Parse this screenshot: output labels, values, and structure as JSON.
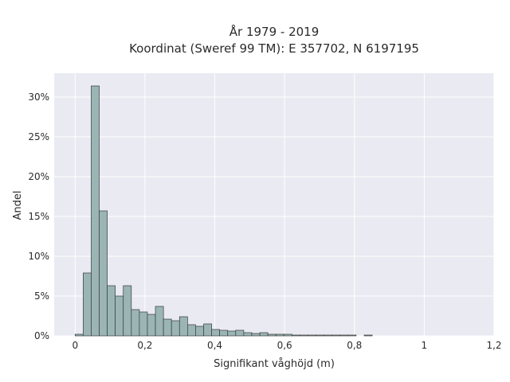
{
  "chart_data": {
    "type": "bar",
    "title_lines": [
      "År 1979 - 2019",
      "Koordinat (Sweref 99 TM): E 357702, N 6197195"
    ],
    "xlabel": "Signifikant våghöjd (m)",
    "ylabel": "Andel",
    "xlim": [
      -0.06,
      1.2
    ],
    "ylim": [
      0,
      0.33
    ],
    "x_ticks": [
      {
        "value": 0,
        "label": "0"
      },
      {
        "value": 0.2,
        "label": "0,2"
      },
      {
        "value": 0.4,
        "label": "0,4"
      },
      {
        "value": 0.6,
        "label": "0,6"
      },
      {
        "value": 0.8,
        "label": "0,8"
      },
      {
        "value": 1.0,
        "label": "1"
      },
      {
        "value": 1.2,
        "label": "1,2"
      }
    ],
    "y_ticks": [
      {
        "value": 0,
        "label": "0%"
      },
      {
        "value": 0.05,
        "label": "5%"
      },
      {
        "value": 0.1,
        "label": "10%"
      },
      {
        "value": 0.15,
        "label": "15%"
      },
      {
        "value": 0.2,
        "label": "20%"
      },
      {
        "value": 0.25,
        "label": "25%"
      },
      {
        "value": 0.3,
        "label": "30%"
      }
    ],
    "bin_width": 0.023,
    "bin_starts": [
      0.0,
      0.023,
      0.046,
      0.069,
      0.092,
      0.115,
      0.138,
      0.161,
      0.184,
      0.207,
      0.23,
      0.253,
      0.276,
      0.299,
      0.322,
      0.345,
      0.368,
      0.391,
      0.414,
      0.437,
      0.46,
      0.483,
      0.506,
      0.529,
      0.552,
      0.575,
      0.598,
      0.621,
      0.644,
      0.667,
      0.69,
      0.713,
      0.736,
      0.759,
      0.782,
      0.805,
      0.828
    ],
    "values": [
      0.002,
      0.079,
      0.314,
      0.157,
      0.063,
      0.05,
      0.063,
      0.033,
      0.03,
      0.027,
      0.037,
      0.021,
      0.019,
      0.024,
      0.014,
      0.012,
      0.015,
      0.008,
      0.007,
      0.006,
      0.007,
      0.004,
      0.003,
      0.004,
      0.002,
      0.002,
      0.002,
      0.001,
      0.001,
      0.001,
      0.001,
      0.001,
      0.001,
      0.001,
      0.001,
      0.0,
      0.001
    ],
    "grid": true,
    "colors": {
      "bar_fill": "#9bb5b5",
      "bar_edge": "#3a3a3a",
      "plot_background": "#eaeaf2",
      "grid": "#ffffff"
    }
  }
}
